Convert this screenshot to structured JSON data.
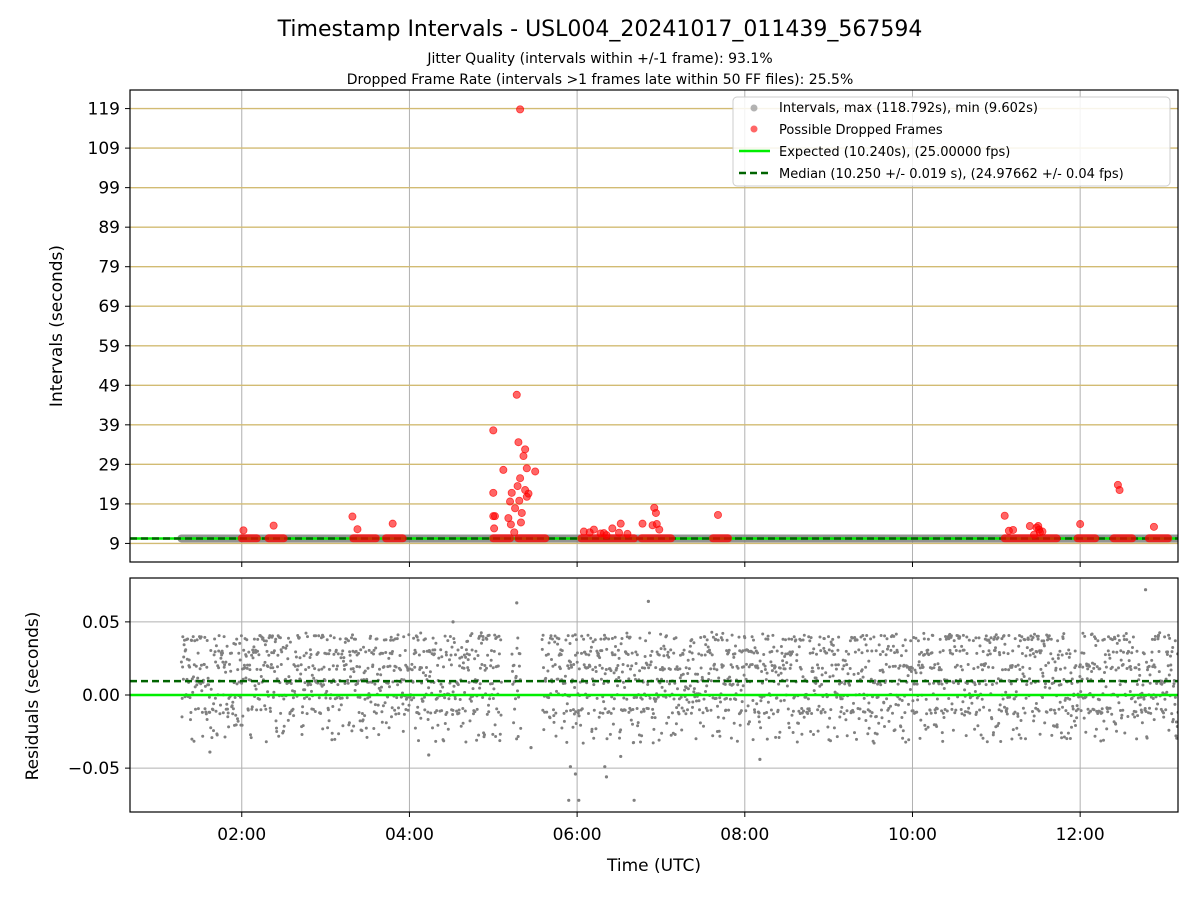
{
  "title": "Timestamp Intervals - USL004_20241017_011439_567594",
  "subtitle_1": "Jitter Quality (intervals within +/-1 frame): 93.1%",
  "subtitle_2": "Dropped Frame Rate (intervals >1 frames late within 50 FF files): 25.5%",
  "colors": {
    "gridline": "#d2bb73",
    "interval_points": "#808080",
    "dropped_points": "#ff0000",
    "expected_line": "#00ee00",
    "median_line": "#006400",
    "axis": "#000000",
    "grid_gray": "#b0b0b0"
  },
  "chart_data": [
    {
      "type": "scatter",
      "panel": "top",
      "ylabel": "Intervals (seconds)",
      "xlim_hours": [
        0.667,
        13.167
      ],
      "ylim": [
        4.3,
        123.7
      ],
      "yticks": [
        9,
        19,
        29,
        39,
        49,
        59,
        69,
        79,
        89,
        99,
        109,
        119
      ],
      "x_tick_hours": [
        2,
        4,
        6,
        8,
        10,
        12
      ],
      "x_tick_labels": [
        "02:00",
        "04:00",
        "06:00",
        "08:00",
        "10:00",
        "12:00"
      ],
      "horizontal_grid": true,
      "vertical_grid": true,
      "legend_position": "top-right",
      "legend": [
        {
          "label": "Intervals, max (118.792s), min (9.602s)",
          "kind": "marker",
          "color": "#a0a0a0"
        },
        {
          "label": "Possible Dropped Frames",
          "kind": "marker",
          "color": "#ff4040"
        },
        {
          "label": "Expected (10.240s), (25.00000 fps)",
          "kind": "line",
          "color": "#00ee00"
        },
        {
          "label": "Median (10.250 +/- 0.019 s), (24.97662 +/- 0.04 fps)",
          "kind": "dashed",
          "color": "#006400"
        }
      ],
      "expected_interval": 10.24,
      "median_interval": 10.25,
      "interval_band": {
        "x_start": 1.28,
        "x_end": 13.17,
        "y": 10.25
      },
      "dropped_segments": [
        {
          "x0": 2.0,
          "x1": 2.18,
          "y": 10.3
        },
        {
          "x0": 2.32,
          "x1": 2.5,
          "y": 10.3
        },
        {
          "x0": 3.33,
          "x1": 3.6,
          "y": 10.3
        },
        {
          "x0": 3.72,
          "x1": 3.92,
          "y": 10.3
        },
        {
          "x0": 5.0,
          "x1": 5.2,
          "y": 10.3
        },
        {
          "x0": 5.3,
          "x1": 5.62,
          "y": 10.3
        },
        {
          "x0": 6.05,
          "x1": 6.68,
          "y": 10.3
        },
        {
          "x0": 6.77,
          "x1": 7.12,
          "y": 10.3
        },
        {
          "x0": 7.62,
          "x1": 7.8,
          "y": 10.3
        },
        {
          "x0": 11.1,
          "x1": 11.72,
          "y": 10.3
        },
        {
          "x0": 11.97,
          "x1": 12.18,
          "y": 10.3
        },
        {
          "x0": 12.4,
          "x1": 12.62,
          "y": 10.3
        },
        {
          "x0": 12.82,
          "x1": 13.05,
          "y": 10.3
        }
      ],
      "dropped_points": [
        [
          2.02,
          12.3
        ],
        [
          2.38,
          13.5
        ],
        [
          3.32,
          15.8
        ],
        [
          3.38,
          12.6
        ],
        [
          3.8,
          14.0
        ],
        [
          5.0,
          37.6
        ],
        [
          5.0,
          21.8
        ],
        [
          5.0,
          15.9
        ],
        [
          5.02,
          15.9
        ],
        [
          5.01,
          12.8
        ],
        [
          5.12,
          27.6
        ],
        [
          5.18,
          15.4
        ],
        [
          5.2,
          19.6
        ],
        [
          5.21,
          13.8
        ],
        [
          5.22,
          21.8
        ],
        [
          5.25,
          11.8
        ],
        [
          5.26,
          17.9
        ],
        [
          5.28,
          46.6
        ],
        [
          5.29,
          23.5
        ],
        [
          5.3,
          34.6
        ],
        [
          5.31,
          19.8
        ],
        [
          5.32,
          118.8
        ],
        [
          5.32,
          25.5
        ],
        [
          5.33,
          14.3
        ],
        [
          5.34,
          16.7
        ],
        [
          5.36,
          31.1
        ],
        [
          5.38,
          32.8
        ],
        [
          5.38,
          22.5
        ],
        [
          5.4,
          20.8
        ],
        [
          5.4,
          28.0
        ],
        [
          5.42,
          21.6
        ],
        [
          5.5,
          27.2
        ],
        [
          6.08,
          12.0
        ],
        [
          6.15,
          11.8
        ],
        [
          6.2,
          12.5
        ],
        [
          6.28,
          11.5
        ],
        [
          6.32,
          11.6
        ],
        [
          6.35,
          11.1
        ],
        [
          6.42,
          12.8
        ],
        [
          6.5,
          11.7
        ],
        [
          6.52,
          14.0
        ],
        [
          6.6,
          11.4
        ],
        [
          6.78,
          14.0
        ],
        [
          6.9,
          13.6
        ],
        [
          6.92,
          18.0
        ],
        [
          6.94,
          16.7
        ],
        [
          6.95,
          13.9
        ],
        [
          6.98,
          12.5
        ],
        [
          7.68,
          16.2
        ],
        [
          11.1,
          16.0
        ],
        [
          11.15,
          12.2
        ],
        [
          11.2,
          12.4
        ],
        [
          11.4,
          13.4
        ],
        [
          11.45,
          11.2
        ],
        [
          11.48,
          13.0
        ],
        [
          11.5,
          13.4
        ],
        [
          11.51,
          12.5
        ],
        [
          11.52,
          11.8
        ],
        [
          11.55,
          12.0
        ],
        [
          12.0,
          13.9
        ],
        [
          12.45,
          23.8
        ],
        [
          12.47,
          22.5
        ],
        [
          12.88,
          13.2
        ]
      ]
    },
    {
      "type": "scatter",
      "panel": "bottom",
      "xlabel": "Time (UTC)",
      "ylabel": "Residuals (seconds)",
      "xlim_hours": [
        0.667,
        13.167
      ],
      "ylim": [
        -0.08,
        0.08
      ],
      "yticks": [
        -0.05,
        0.0,
        0.05
      ],
      "ytick_labels": [
        "−0.05",
        "0.00",
        "0.05"
      ],
      "x_tick_hours": [
        2,
        4,
        6,
        8,
        10,
        12
      ],
      "x_tick_labels": [
        "02:00",
        "04:00",
        "06:00",
        "08:00",
        "10:00",
        "12:00"
      ],
      "grid": true,
      "expected_residual": 0.0,
      "median_residual": 0.0095,
      "residual_cloud": {
        "x_start": 1.28,
        "x_end": 13.17,
        "gaps": [
          [
            5.1,
            5.22
          ],
          [
            5.33,
            5.58
          ]
        ],
        "y_min": -0.033,
        "y_max": 0.043
      },
      "outliers": [
        [
          5.28,
          0.063
        ],
        [
          6.85,
          0.064
        ],
        [
          12.78,
          0.072
        ],
        [
          4.52,
          0.05
        ],
        [
          5.9,
          -0.072
        ],
        [
          5.92,
          -0.049
        ],
        [
          6.02,
          -0.072
        ],
        [
          5.98,
          -0.054
        ],
        [
          6.35,
          -0.056
        ],
        [
          6.33,
          -0.049
        ],
        [
          6.68,
          -0.072
        ],
        [
          6.52,
          -0.042
        ],
        [
          8.18,
          -0.044
        ],
        [
          4.23,
          -0.041
        ],
        [
          1.62,
          -0.039
        ],
        [
          5.45,
          -0.036
        ]
      ]
    }
  ]
}
